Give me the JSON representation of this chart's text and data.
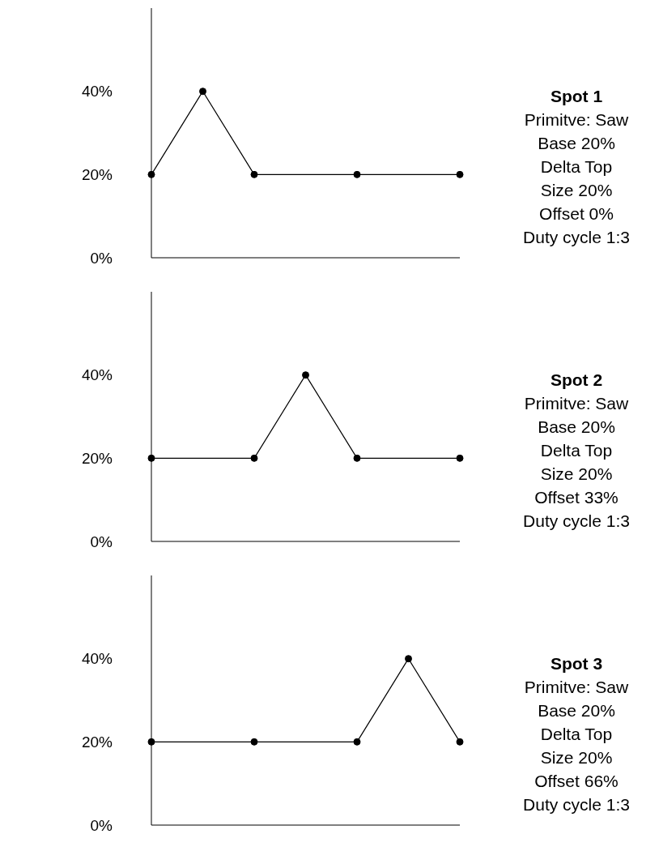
{
  "chart_data": [
    {
      "type": "line",
      "annotations": [
        "Spot 1",
        "Primitve: Saw",
        "Base 20%",
        "Delta Top",
        "Size 20%",
        "Offset 0%",
        "Duty cycle 1:3"
      ],
      "categories": [
        null,
        null,
        null,
        null,
        null,
        null,
        null
      ],
      "values": [
        20,
        40,
        20,
        null,
        20,
        null,
        20
      ],
      "color": "#000000",
      "marker": "circle",
      "ylim": [
        0,
        60
      ],
      "yticks": [
        {
          "value": 0,
          "label": "0%"
        },
        {
          "value": 20,
          "label": "20%"
        },
        {
          "value": 40,
          "label": "40%"
        }
      ],
      "tick_labels": "y"
    },
    {
      "type": "line",
      "annotations": [
        "Spot 2",
        "Primitve: Saw",
        "Base 20%",
        "Delta Top",
        "Size 20%",
        "Offset 33%",
        "Duty cycle 1:3"
      ],
      "categories": [
        null,
        null,
        null,
        null,
        null,
        null,
        null
      ],
      "values": [
        20,
        null,
        20,
        40,
        20,
        null,
        20
      ],
      "color": "#000000",
      "marker": "circle",
      "ylim": [
        0,
        60
      ],
      "yticks": [
        {
          "value": 0,
          "label": "0%"
        },
        {
          "value": 20,
          "label": "20%"
        },
        {
          "value": 40,
          "label": "40%"
        }
      ],
      "tick_labels": "y"
    },
    {
      "type": "line",
      "annotations": [
        "Spot 3",
        "Primitve: Saw",
        "Base 20%",
        "Delta Top",
        "Size 20%",
        "Offset 66%",
        "Duty cycle 1:3"
      ],
      "categories": [
        null,
        null,
        null,
        null,
        null,
        null,
        null
      ],
      "values": [
        20,
        null,
        20,
        null,
        20,
        40,
        20
      ],
      "color": "#000000",
      "marker": "circle",
      "ylim": [
        0,
        60
      ],
      "yticks": [
        {
          "value": 0,
          "label": "0%"
        },
        {
          "value": 20,
          "label": "20%"
        },
        {
          "value": 40,
          "label": "40%"
        }
      ],
      "tick_labels": "y"
    }
  ]
}
